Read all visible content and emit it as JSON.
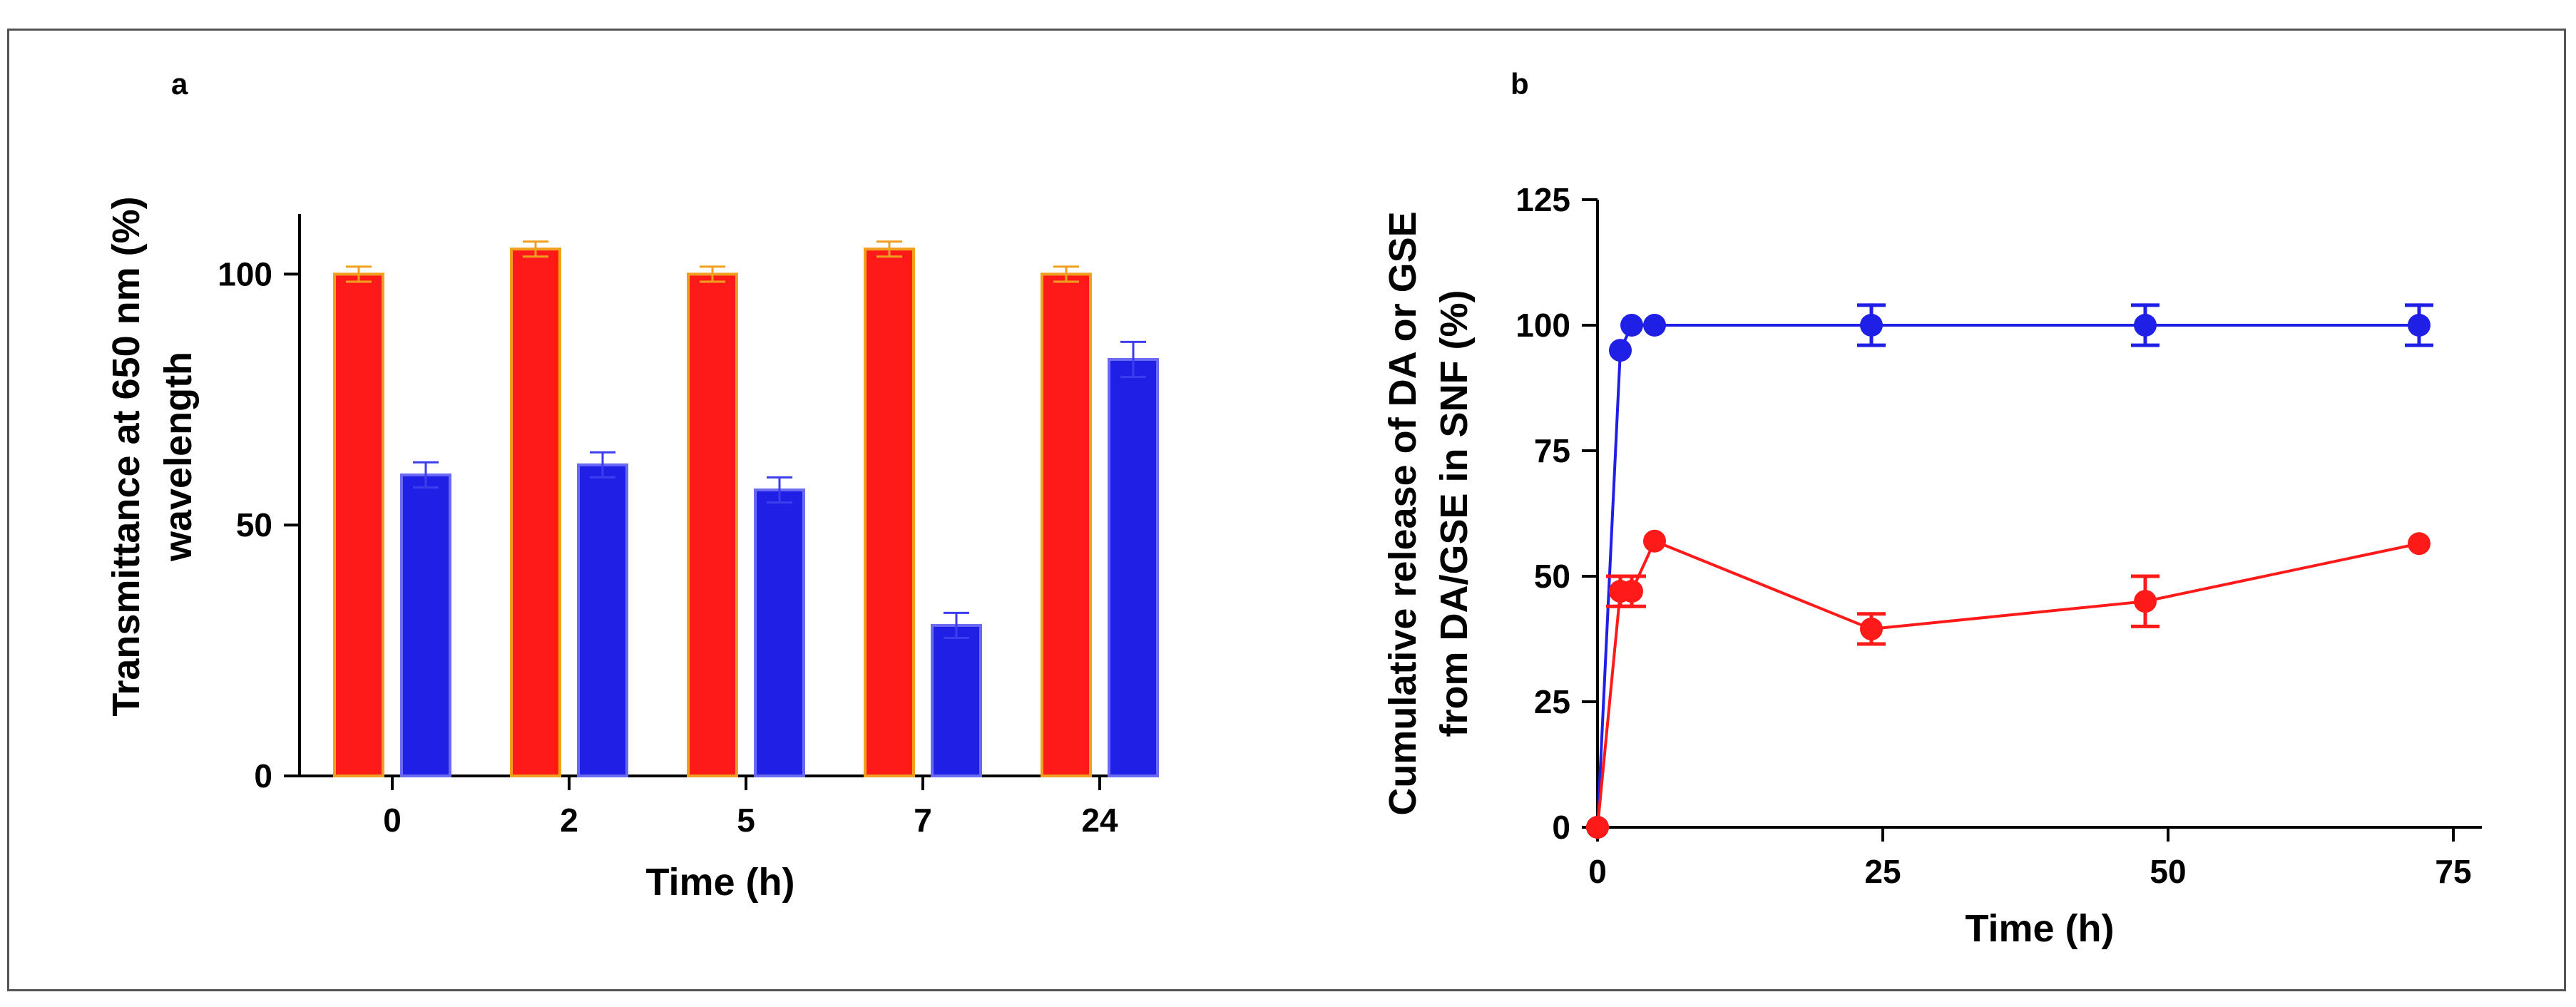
{
  "chart_data": [
    {
      "panel": "a",
      "type": "bar",
      "xlabel": "Time (h)",
      "ylabel": [
        "Transmittance at 650 nm (%)",
        "wavelength"
      ],
      "ylim": [
        0,
        112
      ],
      "yticks": [
        0,
        50,
        100
      ],
      "categories": [
        "0",
        "2",
        "5",
        "7",
        "24"
      ],
      "series": [
        {
          "name": "red",
          "color": "#ff1a1a",
          "edge": "#f0a020",
          "errcolor": "#f0a020",
          "values": [
            100,
            105,
            100,
            105,
            100
          ],
          "errors": [
            1.5,
            1.5,
            1.5,
            1.5,
            1.5
          ]
        },
        {
          "name": "blue",
          "color": "#1f1fe6",
          "edge": "#6a6af5",
          "errcolor": "#3d3df0",
          "values": [
            60,
            62,
            57,
            30,
            83
          ],
          "errors": [
            2.5,
            2.5,
            2.5,
            2.5,
            3.5
          ]
        }
      ]
    },
    {
      "panel": "b",
      "type": "line",
      "xlabel": "Time (h)",
      "ylabel": [
        "Cumulative release of DA or GSE",
        "from DA/GSE in SNF (%)"
      ],
      "xlim": [
        0,
        80
      ],
      "ylim": [
        0,
        125
      ],
      "xticks": [
        0,
        25,
        50,
        75
      ],
      "yticks": [
        0,
        25,
        50,
        75,
        100,
        125
      ],
      "series": [
        {
          "name": "blue",
          "color": "#1f1fe6",
          "points": [
            {
              "x": 0,
              "y": 0,
              "err": 0
            },
            {
              "x": 2,
              "y": 95,
              "err": 0
            },
            {
              "x": 3,
              "y": 100,
              "err": 0
            },
            {
              "x": 5,
              "y": 100,
              "err": 0
            },
            {
              "x": 24,
              "y": 100,
              "err": 4
            },
            {
              "x": 48,
              "y": 100,
              "err": 4
            },
            {
              "x": 72,
              "y": 100,
              "err": 4
            }
          ]
        },
        {
          "name": "red",
          "color": "#ff1a1a",
          "points": [
            {
              "x": 0,
              "y": 0,
              "err": 0
            },
            {
              "x": 2,
              "y": 47,
              "err": 3
            },
            {
              "x": 3,
              "y": 47,
              "err": 3
            },
            {
              "x": 5,
              "y": 57,
              "err": 0
            },
            {
              "x": 24,
              "y": 39.5,
              "err": 3
            },
            {
              "x": 48,
              "y": 45,
              "err": 5
            },
            {
              "x": 72,
              "y": 56.5,
              "err": 0
            }
          ]
        }
      ]
    }
  ]
}
